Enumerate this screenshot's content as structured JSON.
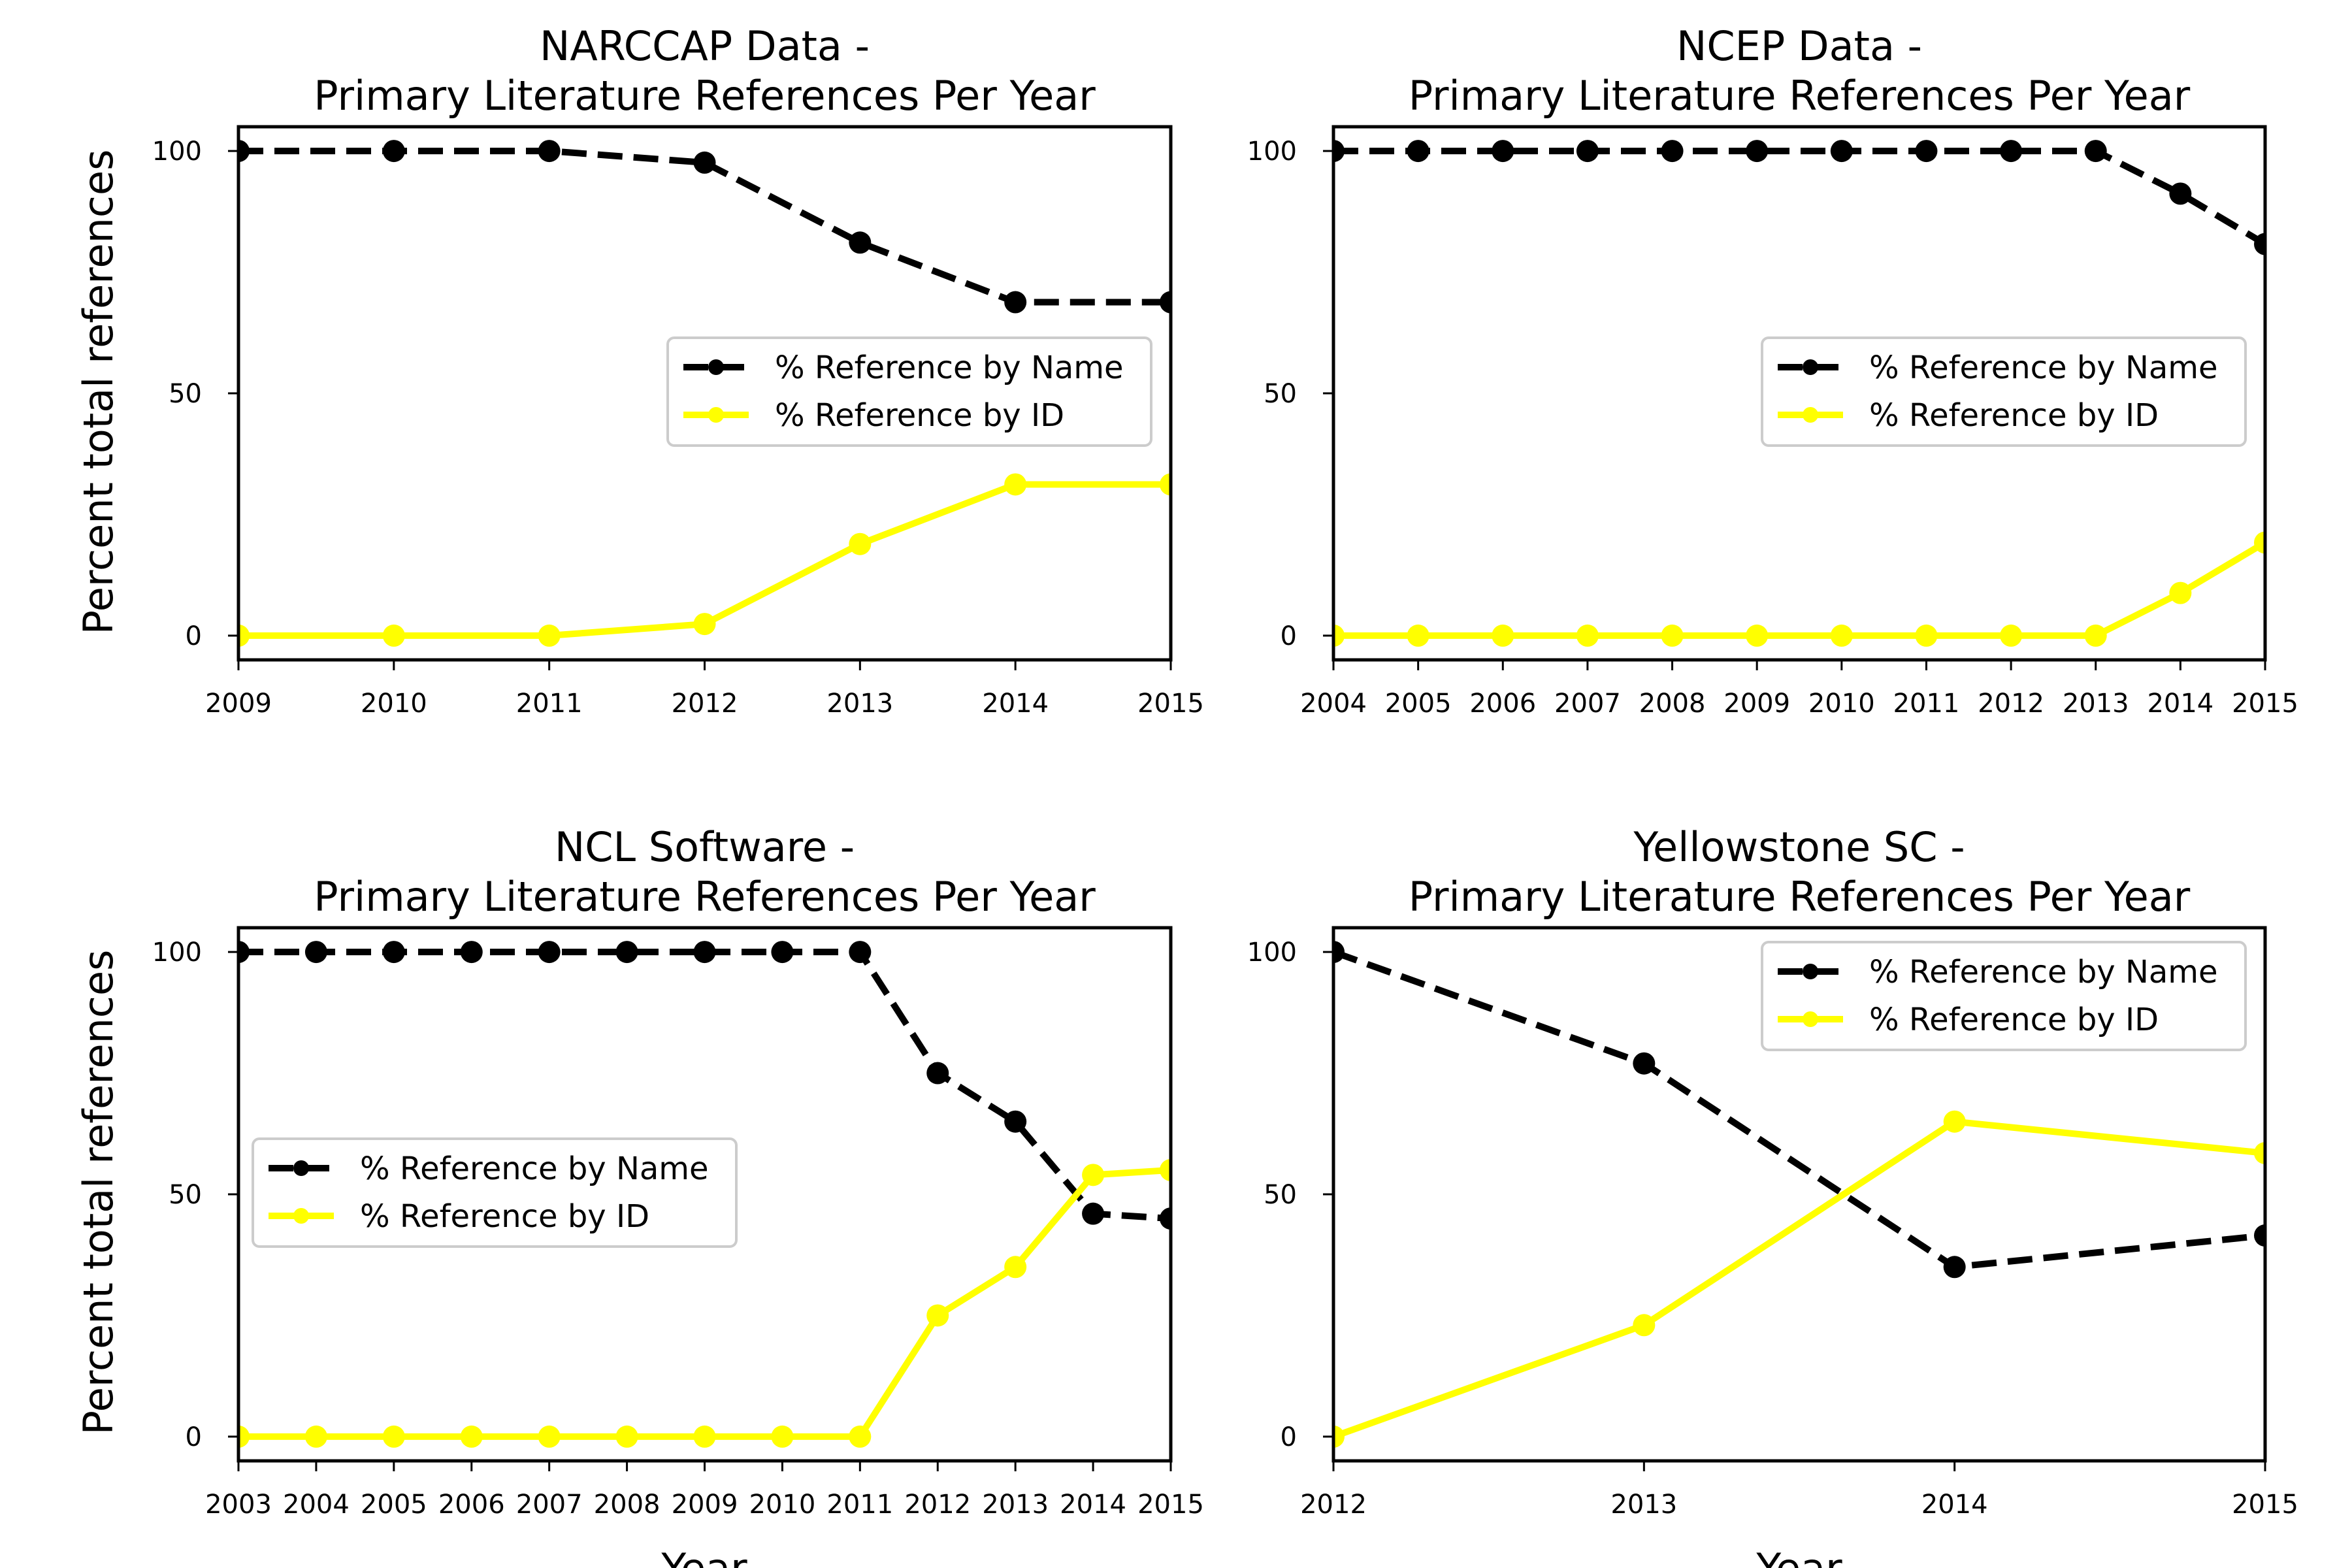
{
  "figure": {
    "ylabel": "Percent total references",
    "xlabel": "Year"
  },
  "colors": {
    "name_series": "#000000",
    "id_series": "#ffff00",
    "legend_border": "#cccccc"
  },
  "chart_data": [
    {
      "type": "line",
      "title_line1": "NARCCAP Data -",
      "title_line2": "Primary Literature References Per Year",
      "x": [
        2009,
        2010,
        2011,
        2012,
        2013,
        2014,
        2015
      ],
      "xlim": [
        2009,
        2015
      ],
      "ylim": [
        -5,
        105
      ],
      "yticks": [
        0,
        50,
        100
      ],
      "grid": false,
      "legend_placement": "center-right",
      "series": [
        {
          "name": "% Reference by Name",
          "style": "dashed",
          "values": [
            100,
            100,
            100,
            97.6,
            81.1,
            68.8,
            68.8
          ]
        },
        {
          "name": "% Reference by ID",
          "style": "solid",
          "values": [
            0,
            0,
            0,
            2.4,
            18.9,
            31.2,
            31.2
          ]
        }
      ]
    },
    {
      "type": "line",
      "title_line1": "NCEP Data -",
      "title_line2": "Primary Literature References Per Year",
      "x": [
        2004,
        2005,
        2006,
        2007,
        2008,
        2009,
        2010,
        2011,
        2012,
        2013,
        2014,
        2015
      ],
      "xlim": [
        2004,
        2015
      ],
      "ylim": [
        -5,
        105
      ],
      "yticks": [
        0,
        50,
        100
      ],
      "grid": false,
      "legend_placement": "center-right",
      "series": [
        {
          "name": "% Reference by Name",
          "style": "dashed",
          "values": [
            100,
            100,
            100,
            100,
            100,
            100,
            100,
            100,
            100,
            100,
            91.2,
            80.8
          ]
        },
        {
          "name": "% Reference by ID",
          "style": "solid",
          "values": [
            0,
            0,
            0,
            0,
            0,
            0,
            0,
            0,
            0,
            0,
            8.8,
            19.2
          ]
        }
      ]
    },
    {
      "type": "line",
      "title_line1": "NCL Software -",
      "title_line2": "Primary Literature References Per Year",
      "x": [
        2003,
        2004,
        2005,
        2006,
        2007,
        2008,
        2009,
        2010,
        2011,
        2012,
        2013,
        2014,
        2015
      ],
      "xlim": [
        2003,
        2015
      ],
      "ylim": [
        -5,
        105
      ],
      "yticks": [
        0,
        50,
        100
      ],
      "grid": false,
      "legend_placement": "center-left",
      "series": [
        {
          "name": "% Reference by Name",
          "style": "dashed",
          "values": [
            100,
            100,
            100,
            100,
            100,
            100,
            100,
            100,
            100,
            75,
            65,
            46,
            45
          ]
        },
        {
          "name": "% Reference by ID",
          "style": "solid",
          "values": [
            0,
            0,
            0,
            0,
            0,
            0,
            0,
            0,
            0,
            25,
            35,
            54,
            55
          ]
        }
      ]
    },
    {
      "type": "line",
      "title_line1": "Yellowstone SC -",
      "title_line2": "Primary Literature References Per Year",
      "x": [
        2012,
        2013,
        2014,
        2015
      ],
      "xlim": [
        2012,
        2015
      ],
      "ylim": [
        -5,
        105
      ],
      "yticks": [
        0,
        50,
        100
      ],
      "grid": false,
      "legend_placement": "upper-right",
      "series": [
        {
          "name": "% Reference by Name",
          "style": "dashed",
          "values": [
            100,
            77,
            35,
            41.5
          ]
        },
        {
          "name": "% Reference by ID",
          "style": "solid",
          "values": [
            0,
            23,
            65,
            58.5
          ]
        }
      ]
    }
  ]
}
